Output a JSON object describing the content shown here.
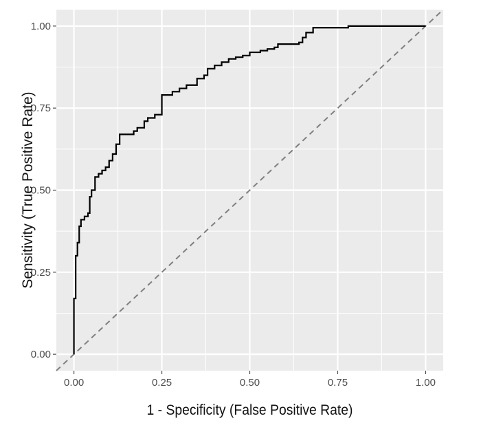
{
  "chart_data": {
    "type": "line",
    "title": "",
    "xlabel": "1 - Specificity (False Positive Rate)",
    "ylabel": "Sensitivity (True Positive Rate)",
    "xlim": [
      -0.05,
      1.05
    ],
    "ylim": [
      -0.05,
      1.05
    ],
    "x_ticks": [
      0.0,
      0.25,
      0.5,
      0.75,
      1.0
    ],
    "x_tick_labels": [
      "0.00",
      "0.25",
      "0.50",
      "0.75",
      "1.00"
    ],
    "y_ticks": [
      0.0,
      0.25,
      0.5,
      0.75,
      1.0
    ],
    "y_tick_labels": [
      "0.00",
      "0.25",
      "0.50",
      "0.75",
      "1.00"
    ],
    "grid": true,
    "legend": "none",
    "series": [
      {
        "style": "step",
        "color": "#000000",
        "x": [
          0.0,
          0.0,
          0.005,
          0.005,
          0.01,
          0.01,
          0.015,
          0.015,
          0.02,
          0.02,
          0.03,
          0.03,
          0.04,
          0.04,
          0.045,
          0.045,
          0.05,
          0.05,
          0.06,
          0.06,
          0.07,
          0.07,
          0.08,
          0.08,
          0.09,
          0.09,
          0.1,
          0.1,
          0.11,
          0.11,
          0.12,
          0.12,
          0.13,
          0.13,
          0.17,
          0.17,
          0.18,
          0.18,
          0.2,
          0.2,
          0.21,
          0.21,
          0.23,
          0.23,
          0.25,
          0.25,
          0.28,
          0.28,
          0.3,
          0.3,
          0.32,
          0.32,
          0.35,
          0.35,
          0.37,
          0.37,
          0.38,
          0.38,
          0.4,
          0.4,
          0.42,
          0.42,
          0.44,
          0.44,
          0.46,
          0.46,
          0.48,
          0.48,
          0.5,
          0.5,
          0.53,
          0.53,
          0.55,
          0.55,
          0.57,
          0.57,
          0.58,
          0.58,
          0.64,
          0.64,
          0.65,
          0.65,
          0.66,
          0.66,
          0.68,
          0.68,
          0.78,
          0.78,
          1.0
        ],
        "y": [
          0.0,
          0.17,
          0.17,
          0.3,
          0.3,
          0.34,
          0.34,
          0.39,
          0.39,
          0.41,
          0.41,
          0.42,
          0.42,
          0.43,
          0.43,
          0.48,
          0.48,
          0.5,
          0.5,
          0.54,
          0.54,
          0.55,
          0.55,
          0.56,
          0.56,
          0.57,
          0.57,
          0.59,
          0.59,
          0.61,
          0.61,
          0.64,
          0.64,
          0.67,
          0.67,
          0.68,
          0.68,
          0.69,
          0.69,
          0.71,
          0.71,
          0.72,
          0.72,
          0.73,
          0.73,
          0.79,
          0.79,
          0.8,
          0.8,
          0.81,
          0.81,
          0.82,
          0.82,
          0.84,
          0.84,
          0.85,
          0.85,
          0.87,
          0.87,
          0.88,
          0.88,
          0.89,
          0.89,
          0.9,
          0.9,
          0.905,
          0.905,
          0.91,
          0.91,
          0.92,
          0.92,
          0.925,
          0.925,
          0.93,
          0.93,
          0.935,
          0.935,
          0.945,
          0.945,
          0.95,
          0.95,
          0.965,
          0.965,
          0.98,
          0.98,
          0.995,
          0.995,
          1.0,
          1.0
        ]
      },
      {
        "style": "dashed",
        "color": "#7f7f7f",
        "x": [
          -0.05,
          1.05
        ],
        "y": [
          -0.05,
          1.05
        ]
      }
    ]
  }
}
